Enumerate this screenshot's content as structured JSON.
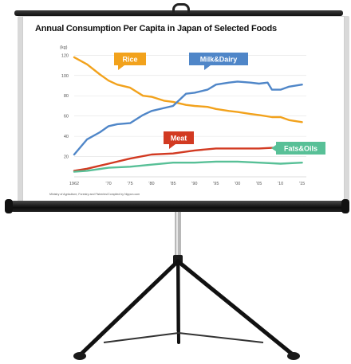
{
  "title": "Annual Consumption Per Capita in Japan of Selected Foods",
  "source": "Ministry of Agriculture, Forestry and Fisheries/Compiled by Nippon.com",
  "chart_data": {
    "type": "line",
    "title": "Annual Consumption Per Capita in Japan of Selected Foods",
    "ylabel": "(kg)",
    "xlabel": "",
    "ylim": [
      0,
      125
    ],
    "xlim": [
      1962,
      2016
    ],
    "y_ticks": [
      20,
      40,
      60,
      80,
      100,
      120
    ],
    "x_ticks": [
      1962,
      1970,
      1975,
      1980,
      1985,
      1990,
      1995,
      2000,
      2005,
      2010,
      2015
    ],
    "x_tick_labels": [
      "1962",
      "'70",
      "'75",
      "'80",
      "'85",
      "'90",
      "'95",
      "'00",
      "'05",
      "'10",
      "'15"
    ],
    "grid": true,
    "legend": "inline labels",
    "series": [
      {
        "name": "Rice",
        "color": "#f2a21c",
        "x": [
          1962,
          1965,
          1968,
          1970,
          1972,
          1975,
          1978,
          1980,
          1983,
          1985,
          1988,
          1990,
          1993,
          1995,
          1998,
          2000,
          2003,
          2005,
          2008,
          2010,
          2012,
          2015
        ],
        "y": [
          118,
          111,
          101,
          95,
          91,
          88,
          80,
          79,
          75,
          74,
          71,
          70,
          69,
          67,
          65,
          64,
          62,
          61,
          59,
          59,
          56,
          54
        ]
      },
      {
        "name": "Milk&Dairy",
        "color": "#4f86c8",
        "x": [
          1962,
          1965,
          1968,
          1970,
          1972,
          1975,
          1978,
          1980,
          1983,
          1985,
          1988,
          1990,
          1993,
          1995,
          1998,
          2000,
          2003,
          2005,
          2007,
          2008,
          2010,
          2012,
          2015
        ],
        "y": [
          22,
          37,
          44,
          50,
          52,
          53,
          61,
          65,
          68,
          70,
          82,
          83,
          86,
          91,
          93,
          94,
          93,
          92,
          93,
          86,
          86,
          89,
          91
        ]
      },
      {
        "name": "Meat",
        "color": "#d23a22",
        "x": [
          1962,
          1965,
          1970,
          1975,
          1980,
          1985,
          1990,
          1995,
          2000,
          2005,
          2010,
          2015
        ],
        "y": [
          6,
          8,
          13,
          18,
          22,
          23,
          26,
          28,
          28,
          28,
          29,
          31
        ]
      },
      {
        "name": "Fats&Oils",
        "color": "#58c097",
        "x": [
          1962,
          1965,
          1970,
          1975,
          1980,
          1985,
          1990,
          1995,
          2000,
          2005,
          2010,
          2015
        ],
        "y": [
          5,
          6,
          9,
          10,
          12,
          14,
          14,
          15,
          15,
          14,
          13,
          14
        ]
      }
    ],
    "tag_colors": {
      "Rice": "#f2a21c",
      "Milk&Dairy": "#4f86c8",
      "Meat": "#d23a22",
      "Fats&Oils": "#58c097"
    }
  }
}
